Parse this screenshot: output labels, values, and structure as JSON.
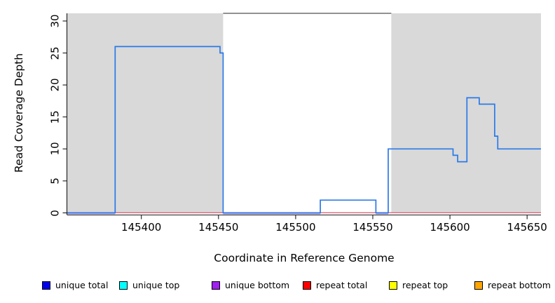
{
  "figure": {
    "background": "#FFFFFF"
  },
  "axes": {
    "x_title": "Coordinate in Reference Genome",
    "y_title": "Read Coverage Depth"
  },
  "chart_data": {
    "type": "line",
    "subtype": "step-coverage",
    "title": "",
    "xlabel": "Coordinate in Reference Genome",
    "ylabel": "Read Coverage Depth",
    "x_domain": [
      145352,
      145659
    ],
    "y_domain": [
      0,
      31.2
    ],
    "x_ticks": [
      145400,
      145450,
      145500,
      145550,
      145600,
      145650
    ],
    "y_ticks": [
      0,
      5,
      10,
      15,
      20,
      25,
      30
    ],
    "grid": false,
    "legend_position": "bottom",
    "shaded_regions": [
      {
        "x_start": 145352,
        "x_end": 145453,
        "color": "#D9D9D9"
      },
      {
        "x_start": 145562,
        "x_end": 145659,
        "color": "#D9D9D9"
      }
    ],
    "top_border_segment": {
      "x_start": 145453,
      "x_end": 145562,
      "color": "#6F6F6F"
    },
    "series": [
      {
        "name": "unique total",
        "line_color": "#2A79E8",
        "legend_color": "#0000EE",
        "steps": [
          {
            "from": 145352,
            "to": 145383,
            "depth": 0
          },
          {
            "from": 145383,
            "to": 145451,
            "depth": 26
          },
          {
            "from": 145451,
            "to": 145453,
            "depth": 25
          },
          {
            "from": 145453,
            "to": 145516,
            "depth": 0
          },
          {
            "from": 145516,
            "to": 145552,
            "depth": 2
          },
          {
            "from": 145552,
            "to": 145560,
            "depth": 0
          },
          {
            "from": 145560,
            "to": 145602,
            "depth": 10
          },
          {
            "from": 145602,
            "to": 145605,
            "depth": 9
          },
          {
            "from": 145605,
            "to": 145611,
            "depth": 8
          },
          {
            "from": 145611,
            "to": 145619,
            "depth": 18
          },
          {
            "from": 145619,
            "to": 145629,
            "depth": 17
          },
          {
            "from": 145629,
            "to": 145631,
            "depth": 12
          },
          {
            "from": 145631,
            "to": 145659,
            "depth": 10
          }
        ]
      },
      {
        "name": "unique top",
        "line_color": "#00FFFF",
        "legend_color": "#00FFFF",
        "steps": [
          {
            "from": 145352,
            "to": 145659,
            "depth": 0
          }
        ]
      },
      {
        "name": "unique bottom",
        "line_color": "#C0A4E8",
        "legend_color": "#A020F0",
        "steps": [
          {
            "from": 145352,
            "to": 145659,
            "depth": 0
          }
        ]
      },
      {
        "name": "repeat total",
        "line_color": "#E4657A",
        "legend_color": "#FF0000",
        "steps": [
          {
            "from": 145352,
            "to": 145659,
            "depth": 0
          }
        ]
      },
      {
        "name": "repeat top",
        "line_color": "#FFFF00",
        "legend_color": "#FFFF00",
        "steps": [
          {
            "from": 145352,
            "to": 145659,
            "depth": 0
          }
        ]
      },
      {
        "name": "repeat bottom",
        "line_color": "#FFA500",
        "legend_color": "#FFA500",
        "steps": [
          {
            "from": 145352,
            "to": 145659,
            "depth": 0
          }
        ]
      }
    ]
  },
  "legend": {
    "items": [
      {
        "label": "unique total",
        "color": "#0000EE"
      },
      {
        "label": "unique top",
        "color": "#00FFFF"
      },
      {
        "label": "unique bottom",
        "color": "#A020F0"
      },
      {
        "label": "repeat total",
        "color": "#FF0000"
      },
      {
        "label": "repeat top",
        "color": "#FFFF00"
      },
      {
        "label": "repeat bottom",
        "color": "#FFA500"
      }
    ]
  }
}
